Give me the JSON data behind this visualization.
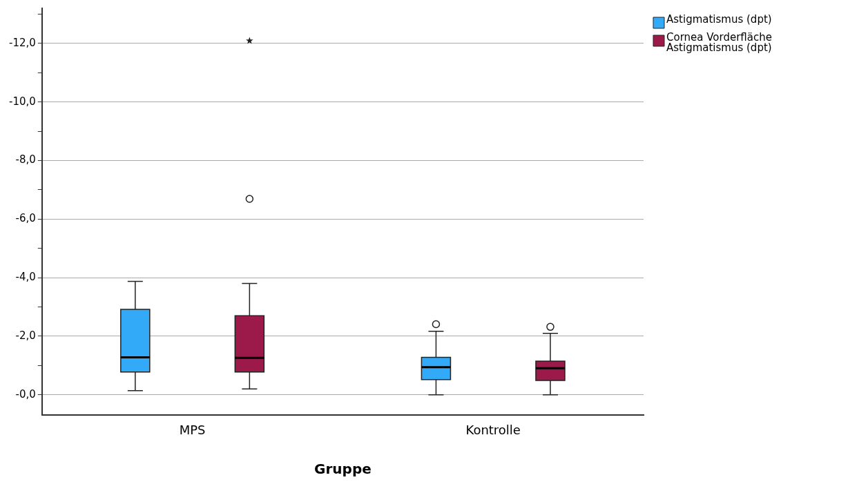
{
  "chart_data": {
    "type": "box",
    "xlabel": "Gruppe",
    "categories": [
      "MPS",
      "Kontrolle"
    ],
    "ylim": [
      0.7,
      -13.2
    ],
    "yticks": [
      {
        "value": 0,
        "label": "-0,0"
      },
      {
        "value": -1,
        "label": null
      },
      {
        "value": -2,
        "label": "-2,0"
      },
      {
        "value": -3,
        "label": null
      },
      {
        "value": -4,
        "label": "-4,0"
      },
      {
        "value": -5,
        "label": null
      },
      {
        "value": -6,
        "label": "-6,0"
      },
      {
        "value": -7,
        "label": null
      },
      {
        "value": -8,
        "label": "-8,0"
      },
      {
        "value": -9,
        "label": null
      },
      {
        "value": -10,
        "label": "-10,0"
      },
      {
        "value": -11,
        "label": null
      },
      {
        "value": -12,
        "label": "-12,0"
      },
      {
        "value": -13,
        "label": null
      }
    ],
    "grid": "y",
    "legend": "top right",
    "series": [
      {
        "name": "Astigmatismus (dpt)",
        "color": "#33aaf7",
        "boxes": [
          {
            "low": -3.87,
            "q1": -2.92,
            "median": -1.28,
            "q3": -0.78,
            "high": -0.14
          },
          {
            "low": -2.17,
            "q1": -1.28,
            "median": -0.94,
            "q3": -0.52,
            "high": 0,
            "outliers": [
              -2.41
            ]
          }
        ]
      },
      {
        "name": "Cornea Vorderfläche Astigmatismus (dpt)",
        "color": "#9c1a4a",
        "boxes": [
          {
            "low": -3.8,
            "q1": -2.7,
            "median": -1.26,
            "q3": -0.78,
            "high": -0.2,
            "outliers": [
              -6.69,
              -12.09
            ]
          },
          {
            "low": -2.1,
            "q1": -1.15,
            "median": -0.91,
            "q3": -0.49,
            "high": 0,
            "outliers": [
              -2.32
            ]
          }
        ]
      }
    ]
  }
}
